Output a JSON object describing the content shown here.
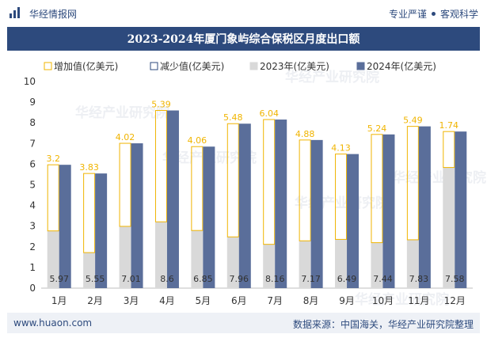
{
  "header": {
    "site_name": "华经情报网",
    "slogan_left": "专业严谨",
    "slogan_right": "客观科学",
    "logo_icon": "bar-chart-icon"
  },
  "title": "2023-2024年厦门象屿综合保税区月度出口额",
  "footer": {
    "website": "www.huaon.com",
    "source": "数据来源：中国海关，华经产业研究院整理"
  },
  "watermark": {
    "text": "华经产业研究院",
    "url": "www.huaon.com"
  },
  "colors": {
    "accent": "#2d4a7d",
    "increase_border": "#f0b400",
    "decrease_border": "#2d4a7d",
    "bar_2023": "#d9d9d9",
    "bar_2024": "#5a6e9a",
    "increase_label": "#f0b400"
  },
  "chart_data": {
    "type": "bar",
    "categories": [
      "1月",
      "2月",
      "3月",
      "4月",
      "5月",
      "6月",
      "7月",
      "8月",
      "9月",
      "10月",
      "11月",
      "12月"
    ],
    "series": [
      {
        "name": "2023年(亿美元)",
        "values": [
          2.77,
          1.72,
          2.99,
          3.21,
          2.79,
          2.48,
          2.12,
          2.29,
          2.36,
          2.2,
          2.34,
          5.84
        ]
      },
      {
        "name": "2024年(亿美元)",
        "values": [
          5.97,
          5.55,
          7.01,
          8.6,
          6.85,
          7.96,
          8.16,
          7.17,
          6.49,
          7.44,
          7.83,
          7.58
        ]
      },
      {
        "name": "增加值(亿美元)",
        "values": [
          3.2,
          3.83,
          4.02,
          5.39,
          4.06,
          5.48,
          6.04,
          4.88,
          4.13,
          5.24,
          5.49,
          1.74
        ]
      },
      {
        "name": "减少值(亿美元)",
        "values": [
          0,
          0,
          0,
          0,
          0,
          0,
          0,
          0,
          0,
          0,
          0,
          0
        ]
      }
    ],
    "legend": [
      "增加值(亿美元)",
      "减少值(亿美元)",
      "2023年(亿美元)",
      "2024年(亿美元)"
    ],
    "legend_position": "top-left",
    "ylim": [
      0,
      10
    ],
    "yticks": [
      0,
      1,
      2,
      3,
      4,
      5,
      6,
      7,
      8,
      9,
      10
    ],
    "grid": false
  }
}
